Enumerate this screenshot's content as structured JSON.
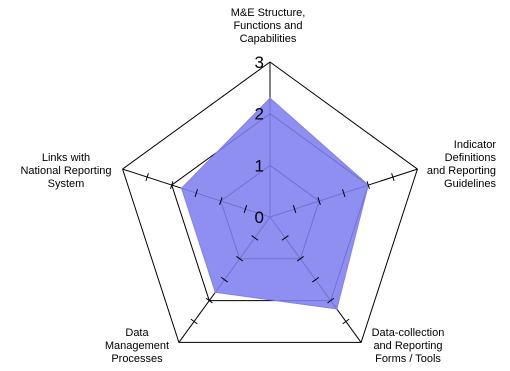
{
  "chart_data": {
    "type": "radar",
    "axes": [
      "M&E Structure, Functions and Capabilities",
      "Indicator Definitions and Reporting Guidelines",
      "Data-collection and Reporting Forms / Tools",
      "Data Management Processes",
      "Links with National Reporting System"
    ],
    "axis_label_lines": [
      [
        "M&E Structure,",
        "Functions and",
        "Capabilities"
      ],
      [
        "Indicator",
        "Definitions",
        "and Reporting",
        "Guidelines"
      ],
      [
        "Data-collection",
        "and Reporting",
        "Forms / Tools"
      ],
      [
        "Data",
        "Management",
        "Processes"
      ],
      [
        "Links with",
        "National Reporting",
        "System"
      ]
    ],
    "series": [
      {
        "values": [
          2.3,
          2.0,
          2.2,
          1.8,
          1.8
        ],
        "color": "#8080f0"
      }
    ],
    "range": [
      0,
      3
    ],
    "grid_levels": [
      1,
      2,
      3
    ],
    "ticks_per_unit": 2,
    "tick_labels": [
      "0",
      "1",
      "2",
      "3"
    ],
    "colors": {
      "fill": "#8080f0",
      "grid": "#000000"
    }
  }
}
